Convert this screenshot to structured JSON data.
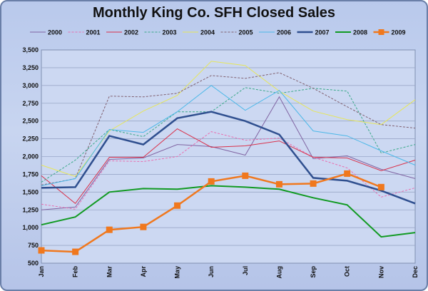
{
  "chart_data": {
    "type": "line",
    "title": "Monthly King Co. SFH Closed Sales",
    "xlabel": "",
    "ylabel": "",
    "categories": [
      "Jan",
      "Feb",
      "Mar",
      "Apr",
      "May",
      "Jun",
      "Jul",
      "Aug",
      "Sep",
      "Oct",
      "Nov",
      "Dec"
    ],
    "ylim": [
      500,
      3500
    ],
    "yticks": [
      "500",
      "750",
      "1,000",
      "1,250",
      "1,500",
      "1,750",
      "2,000",
      "2,250",
      "2,500",
      "2,750",
      "3,000",
      "3,250",
      "3,500"
    ],
    "grid": true,
    "legend_position": "top",
    "series": [
      {
        "name": "2000",
        "color": "#8064a2",
        "style": "solid",
        "width": 1,
        "marker": false,
        "values": [
          1250,
          1290,
          1960,
          1980,
          2170,
          2140,
          2020,
          2840,
          1970,
          2010,
          1820,
          1690
        ]
      },
      {
        "name": "2001",
        "color": "#e86fb0",
        "style": "dash",
        "width": 1,
        "marker": false,
        "values": [
          1330,
          1260,
          1940,
          1930,
          2000,
          2350,
          2230,
          2260,
          1990,
          1840,
          1430,
          1560
        ]
      },
      {
        "name": "2002",
        "color": "#d9304a",
        "style": "solid",
        "width": 1,
        "marker": false,
        "values": [
          1730,
          1340,
          1990,
          1990,
          2390,
          2130,
          2150,
          2220,
          1990,
          1980,
          1800,
          1950
        ]
      },
      {
        "name": "2003",
        "color": "#3aa989",
        "style": "dash",
        "width": 1,
        "marker": false,
        "values": [
          1640,
          1950,
          2380,
          2280,
          2630,
          2630,
          2970,
          2890,
          2960,
          2920,
          2050,
          2170
        ]
      },
      {
        "name": "2004",
        "color": "#e6e65a",
        "style": "solid",
        "width": 1,
        "marker": false,
        "values": [
          1880,
          1720,
          2360,
          2640,
          2860,
          3340,
          3280,
          2920,
          2640,
          2520,
          2450,
          2800
        ]
      },
      {
        "name": "2005",
        "color": "#806070",
        "style": "dash",
        "width": 1,
        "marker": false,
        "values": [
          1600,
          1690,
          2850,
          2840,
          2890,
          3140,
          3100,
          3180,
          2960,
          2700,
          2450,
          2400
        ]
      },
      {
        "name": "2006",
        "color": "#4db8e8",
        "style": "solid",
        "width": 1,
        "marker": false,
        "values": [
          1590,
          1690,
          2380,
          2340,
          2630,
          3000,
          2650,
          2930,
          2360,
          2290,
          2080,
          1880
        ]
      },
      {
        "name": "2007",
        "color": "#2f4f8f",
        "style": "solid",
        "width": 2.5,
        "marker": false,
        "values": [
          1560,
          1570,
          2290,
          2170,
          2540,
          2630,
          2500,
          2310,
          1700,
          1660,
          1520,
          1340
        ]
      },
      {
        "name": "2008",
        "color": "#119a22",
        "style": "solid",
        "width": 2,
        "marker": false,
        "values": [
          1040,
          1150,
          1500,
          1550,
          1540,
          1590,
          1570,
          1540,
          1420,
          1320,
          870,
          930
        ]
      },
      {
        "name": "2009",
        "color": "#f0781e",
        "style": "solid",
        "width": 2.5,
        "marker": true,
        "values": [
          680,
          660,
          970,
          1010,
          1310,
          1650,
          1730,
          1610,
          1620,
          1760,
          1570,
          null
        ]
      }
    ]
  }
}
